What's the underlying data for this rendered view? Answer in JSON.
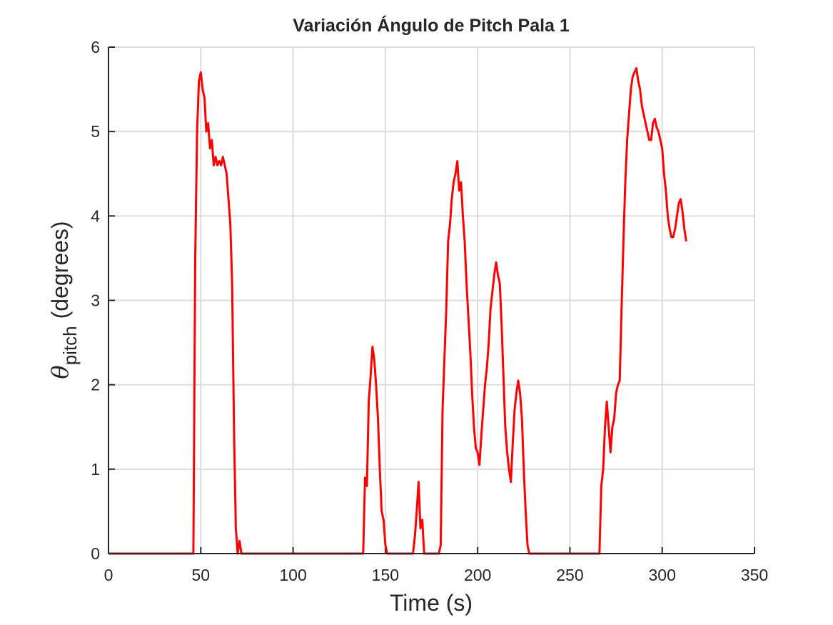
{
  "chart_data": {
    "type": "line",
    "title": "Variación Ángulo de Pitch Pala 1",
    "xlabel": "Time (s)",
    "ylabel_symbol": "θ",
    "ylabel_subscript": "pitch",
    "ylabel_text": "(degrees)",
    "color": "#ff0000",
    "grid": true,
    "xlim": [
      0,
      350
    ],
    "ylim": [
      0,
      6
    ],
    "xticks": [
      0,
      50,
      100,
      150,
      200,
      250,
      300,
      350
    ],
    "yticks": [
      0,
      1,
      2,
      3,
      4,
      5,
      6
    ],
    "x": [
      0,
      46,
      47,
      48,
      49,
      50,
      51,
      52,
      53,
      54,
      55,
      56,
      57,
      58,
      59,
      60,
      61,
      62,
      63,
      64,
      65,
      66,
      67,
      68,
      69,
      70,
      71,
      72,
      138,
      139,
      140,
      141,
      142,
      143,
      144,
      145,
      146,
      147,
      148,
      149,
      150,
      151,
      165,
      166,
      167,
      168,
      169,
      170,
      171,
      179,
      180,
      181,
      183,
      184,
      185,
      186,
      187,
      188,
      189,
      190,
      191,
      192,
      193,
      194,
      195,
      196,
      197,
      198,
      199,
      200,
      201,
      202,
      203,
      204,
      205,
      206,
      207,
      208,
      209,
      210,
      211,
      212,
      213,
      214,
      215,
      216,
      217,
      218,
      219,
      220,
      221,
      222,
      223,
      224,
      225,
      226,
      227,
      228,
      266,
      267,
      268,
      269,
      270,
      271,
      272,
      273,
      274,
      275,
      276,
      277,
      278,
      279,
      280,
      281,
      282,
      283,
      284,
      285,
      286,
      287,
      288,
      289,
      290,
      291,
      292,
      293,
      294,
      295,
      296,
      297,
      298,
      299,
      300,
      301,
      302,
      303,
      304,
      305,
      306,
      307,
      308,
      309,
      310,
      311,
      312,
      313
    ],
    "values": [
      0,
      0,
      3.5,
      5,
      5.6,
      5.7,
      5.5,
      5.4,
      5.0,
      5.1,
      4.8,
      4.9,
      4.6,
      4.7,
      4.6,
      4.65,
      4.6,
      4.7,
      4.6,
      4.5,
      4.2,
      3.9,
      3.2,
      1.5,
      0.3,
      0,
      0.15,
      0,
      0,
      0.9,
      0.8,
      1.8,
      2.1,
      2.45,
      2.3,
      2.0,
      1.6,
      1.0,
      0.5,
      0.4,
      0.1,
      0,
      0,
      0.2,
      0.5,
      0.85,
      0.3,
      0.4,
      0,
      0,
      0.1,
      1.7,
      2.9,
      3.7,
      3.9,
      4.2,
      4.4,
      4.5,
      4.65,
      4.3,
      4.4,
      4.0,
      3.7,
      3.2,
      2.8,
      2.4,
      1.9,
      1.5,
      1.25,
      1.2,
      1.05,
      1.4,
      1.7,
      2.0,
      2.2,
      2.5,
      2.9,
      3.1,
      3.3,
      3.45,
      3.3,
      3.2,
      2.7,
      2.1,
      1.5,
      1.2,
      1.0,
      0.85,
      1.3,
      1.7,
      1.9,
      2.05,
      1.9,
      1.6,
      1.0,
      0.5,
      0.1,
      0,
      0,
      0.8,
      1.0,
      1.5,
      1.8,
      1.5,
      1.2,
      1.5,
      1.6,
      1.9,
      2.0,
      2.05,
      2.9,
      3.7,
      4.4,
      4.9,
      5.2,
      5.5,
      5.65,
      5.7,
      5.75,
      5.6,
      5.5,
      5.3,
      5.2,
      5.1,
      5.0,
      4.9,
      4.9,
      5.1,
      5.15,
      5.05,
      5.0,
      4.9,
      4.8,
      4.5,
      4.3,
      4.0,
      3.85,
      3.75,
      3.75,
      3.85,
      4.0,
      4.15,
      4.2,
      4.05,
      3.85,
      3.7
    ]
  }
}
